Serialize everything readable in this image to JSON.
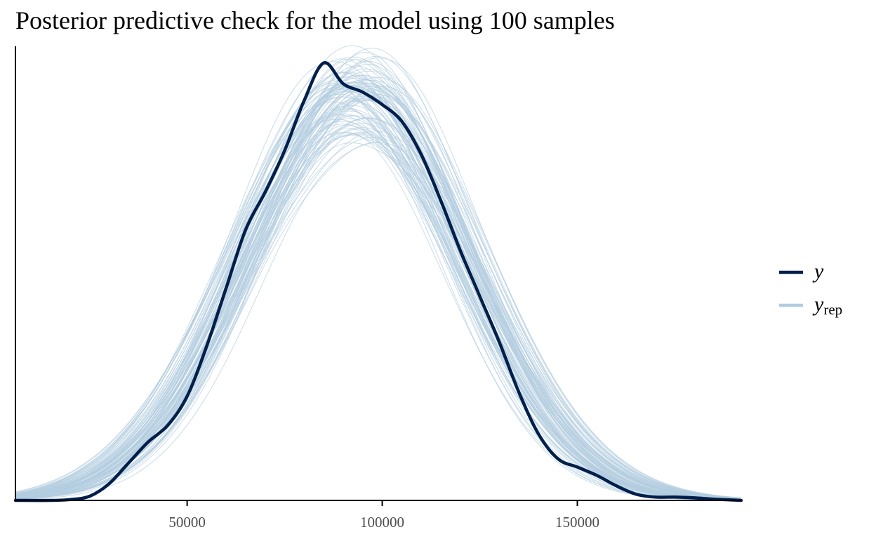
{
  "title": "Posterior predictive check for the model using 100 samples",
  "colors": {
    "y": "#011f4b",
    "yrep": "#b3cde0",
    "axis": "#000000",
    "tick_text": "#4d4d4d"
  },
  "chart_data": {
    "type": "line",
    "title": "Posterior predictive check for the model using 100 samples",
    "xlabel": "",
    "ylabel": "",
    "xlim": [
      6000,
      192000
    ],
    "ylim": [
      0,
      1.09
    ],
    "grid": false,
    "legend_position": "right",
    "x_ticks": [
      50000,
      100000,
      150000
    ],
    "x_tick_labels": [
      "50000",
      "100000",
      "150000"
    ],
    "n_rep_draws": 100,
    "legend": [
      {
        "label": "y",
        "sub": ""
      },
      {
        "label": "y",
        "sub": "rep"
      }
    ],
    "series": [
      {
        "name": "y",
        "x": [
          6000,
          15000,
          20000,
          25000,
          30000,
          35000,
          40000,
          45000,
          50000,
          55000,
          60000,
          65000,
          70000,
          75000,
          80000,
          85000,
          90000,
          95000,
          100000,
          105000,
          110000,
          115000,
          120000,
          125000,
          130000,
          135000,
          140000,
          145000,
          150000,
          155000,
          160000,
          165000,
          170000,
          175000,
          180000,
          185000,
          192000
        ],
        "y": [
          0.0,
          0.0,
          0.002,
          0.01,
          0.04,
          0.09,
          0.14,
          0.18,
          0.25,
          0.37,
          0.51,
          0.65,
          0.74,
          0.84,
          0.96,
          1.05,
          1.0,
          0.98,
          0.95,
          0.91,
          0.83,
          0.72,
          0.6,
          0.49,
          0.38,
          0.26,
          0.16,
          0.1,
          0.08,
          0.06,
          0.035,
          0.015,
          0.008,
          0.008,
          0.006,
          0.003,
          0.0
        ]
      }
    ]
  }
}
